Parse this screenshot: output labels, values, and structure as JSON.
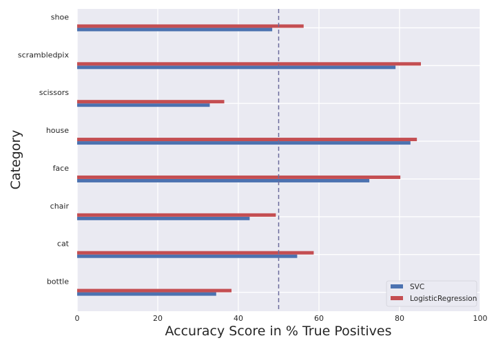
{
  "chart_data": {
    "type": "bar",
    "orientation": "horizontal",
    "categories": [
      "bottle",
      "cat",
      "chair",
      "face",
      "house",
      "scissors",
      "scrambledpix",
      "shoe"
    ],
    "series": [
      {
        "name": "SVC",
        "color": "#4c72b0",
        "values": [
          34.5,
          54.6,
          42.8,
          72.5,
          82.7,
          32.9,
          79.0,
          48.4
        ]
      },
      {
        "name": "LogisticRegression",
        "color": "#c44e52",
        "values": [
          38.3,
          58.7,
          49.3,
          80.2,
          84.3,
          36.5,
          85.3,
          56.2
        ]
      }
    ],
    "xlabel": "Accuracy Score in % True Positives",
    "ylabel": "Category",
    "xlim": [
      0,
      100
    ],
    "xticks": [
      0,
      20,
      40,
      60,
      80,
      100
    ],
    "reference_line": {
      "x": 50,
      "style": "dashed",
      "color": "#6a6a9c"
    },
    "grid": true,
    "background": "#eaeaf2",
    "legend": {
      "placement": "bottom-right",
      "entries": [
        "SVC",
        "LogisticRegression"
      ]
    }
  }
}
